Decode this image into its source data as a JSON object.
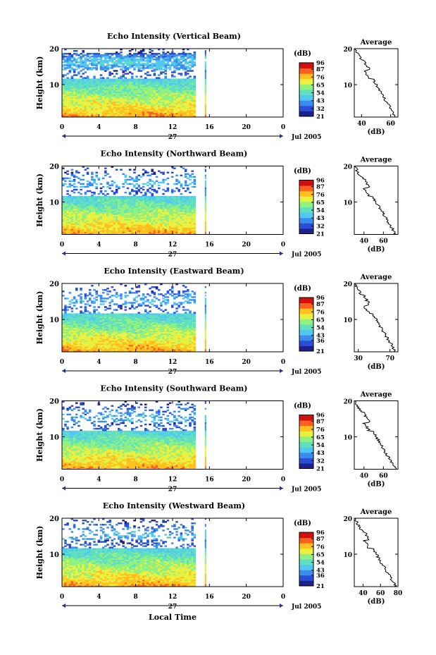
{
  "figure": {
    "xaxis_title": "Local Time",
    "date_label": "Jul 2005",
    "day_label": "27"
  },
  "colors": {
    "colormap": [
      "#20208a",
      "#2a4fd6",
      "#3c8cf0",
      "#50c8f0",
      "#60e0c0",
      "#90f080",
      "#e8f040",
      "#ffc020",
      "#ff6020",
      "#d01010"
    ]
  },
  "chart_data": [
    {
      "type": "heatmap",
      "title": "Echo Intensity (Vertical Beam)",
      "ylabel": "Height (km)",
      "xlim": [
        0,
        24
      ],
      "ylim": [
        1,
        20
      ],
      "xticks": [
        "0",
        "4",
        "8",
        "12",
        "16",
        "20",
        "0"
      ],
      "xtick_values": [
        0,
        4,
        8,
        12,
        16,
        20,
        24
      ],
      "yticks": [
        "10",
        "20"
      ],
      "ytick_values": [
        10,
        20
      ],
      "data_extent_hours": [
        0,
        14.5
      ],
      "extra_column_hour": 15.5,
      "colorbar": {
        "label": "(dB)",
        "ticks": [
          "96",
          "87",
          "76",
          "65",
          "54",
          "43",
          "32",
          "21"
        ],
        "tick_values": [
          96,
          87,
          76,
          65,
          54,
          43,
          32,
          21
        ],
        "range": [
          21,
          96
        ]
      },
      "profile": {
        "title": "Average",
        "xlabel": "(dB)",
        "xticks": [
          "40",
          "60"
        ],
        "xtick_values": [
          40,
          60
        ],
        "xlim": [
          35,
          65
        ],
        "ylim": [
          1,
          20
        ],
        "yticks": [
          "10",
          "20"
        ],
        "ytick_values": [
          10,
          20
        ]
      }
    },
    {
      "type": "heatmap",
      "title": "Echo Intensity (Northward Beam)",
      "ylabel": "Height (km)",
      "xlim": [
        0,
        24
      ],
      "ylim": [
        1,
        20
      ],
      "xticks": [
        "0",
        "4",
        "8",
        "12",
        "16",
        "20",
        "0"
      ],
      "xtick_values": [
        0,
        4,
        8,
        12,
        16,
        20,
        24
      ],
      "yticks": [
        "10",
        "20"
      ],
      "ytick_values": [
        10,
        20
      ],
      "data_extent_hours": [
        0,
        14.5
      ],
      "extra_column_hour": 15.5,
      "colorbar": {
        "label": "(dB)",
        "ticks": [
          "96",
          "87",
          "76",
          "65",
          "54",
          "43",
          "32",
          "21"
        ],
        "tick_values": [
          96,
          87,
          76,
          65,
          54,
          43,
          32,
          21
        ],
        "range": [
          21,
          96
        ]
      },
      "profile": {
        "title": "Average",
        "xlabel": "(dB)",
        "xticks": [
          "40",
          "60"
        ],
        "xtick_values": [
          40,
          60
        ],
        "xlim": [
          30,
          75
        ],
        "ylim": [
          1,
          20
        ],
        "yticks": [
          "10",
          "20"
        ],
        "ytick_values": [
          10,
          20
        ]
      }
    },
    {
      "type": "heatmap",
      "title": "Echo Intensity (Eastward Beam)",
      "ylabel": "Height (km)",
      "xlim": [
        0,
        24
      ],
      "ylim": [
        1,
        20
      ],
      "xticks": [
        "0",
        "4",
        "8",
        "12",
        "16",
        "20",
        "0"
      ],
      "xtick_values": [
        0,
        4,
        8,
        12,
        16,
        20,
        24
      ],
      "yticks": [
        "10",
        "20"
      ],
      "ytick_values": [
        10,
        20
      ],
      "data_extent_hours": [
        0,
        14.5
      ],
      "extra_column_hour": 15.5,
      "colorbar": {
        "label": "(dB)",
        "ticks": [
          "96",
          "87",
          "76",
          "65",
          "54",
          "43",
          "36",
          "21"
        ],
        "tick_values": [
          96,
          87,
          76,
          65,
          54,
          43,
          36,
          21
        ],
        "range": [
          21,
          96
        ]
      },
      "profile": {
        "title": "Average",
        "xlabel": "(dB)",
        "xticks": [
          "30",
          "70"
        ],
        "xtick_values": [
          30,
          70
        ],
        "xlim": [
          25,
          80
        ],
        "ylim": [
          1,
          20
        ],
        "yticks": [
          "10",
          "20"
        ],
        "ytick_values": [
          10,
          20
        ]
      }
    },
    {
      "type": "heatmap",
      "title": "Echo Intensity (Southward Beam)",
      "ylabel": "Height (km)",
      "xlim": [
        0,
        24
      ],
      "ylim": [
        1,
        20
      ],
      "xticks": [
        "0",
        "4",
        "8",
        "12",
        "16",
        "20",
        "0"
      ],
      "xtick_values": [
        0,
        4,
        8,
        12,
        16,
        20,
        24
      ],
      "yticks": [
        "10",
        "20"
      ],
      "ytick_values": [
        10,
        20
      ],
      "data_extent_hours": [
        0,
        14.5
      ],
      "extra_column_hour": 15.5,
      "colorbar": {
        "label": "(dB)",
        "ticks": [
          "96",
          "87",
          "76",
          "65",
          "54",
          "43",
          "32",
          "21"
        ],
        "tick_values": [
          96,
          87,
          76,
          65,
          54,
          43,
          32,
          21
        ],
        "range": [
          21,
          96
        ]
      },
      "profile": {
        "title": "Average",
        "xlabel": "(dB)",
        "xticks": [
          "40",
          "60"
        ],
        "xtick_values": [
          40,
          60
        ],
        "xlim": [
          30,
          75
        ],
        "ylim": [
          1,
          20
        ],
        "yticks": [
          "10",
          "20"
        ],
        "ytick_values": [
          10,
          20
        ]
      }
    },
    {
      "type": "heatmap",
      "title": "Echo Intensity (Westward Beam)",
      "ylabel": "Height (km)",
      "xlim": [
        0,
        24
      ],
      "ylim": [
        1,
        20
      ],
      "xticks": [
        "0",
        "4",
        "8",
        "12",
        "16",
        "20",
        "0"
      ],
      "xtick_values": [
        0,
        4,
        8,
        12,
        16,
        20,
        24
      ],
      "yticks": [
        "10",
        "20"
      ],
      "ytick_values": [
        10,
        20
      ],
      "data_extent_hours": [
        0,
        14.5
      ],
      "extra_column_hour": 15.5,
      "colorbar": {
        "label": "(dB)",
        "ticks": [
          "96",
          "87",
          "76",
          "65",
          "54",
          "43",
          "36",
          "21"
        ],
        "tick_values": [
          96,
          87,
          76,
          65,
          54,
          43,
          36,
          21
        ],
        "range": [
          21,
          96
        ]
      },
      "profile": {
        "title": "Average",
        "xlabel": "(dB)",
        "xticks": [
          "40",
          "60",
          "80"
        ],
        "xtick_values": [
          40,
          60,
          80
        ],
        "xlim": [
          30,
          80
        ],
        "ylim": [
          1,
          20
        ],
        "yticks": [
          "10",
          "20"
        ],
        "ytick_values": [
          10,
          20
        ]
      }
    }
  ]
}
